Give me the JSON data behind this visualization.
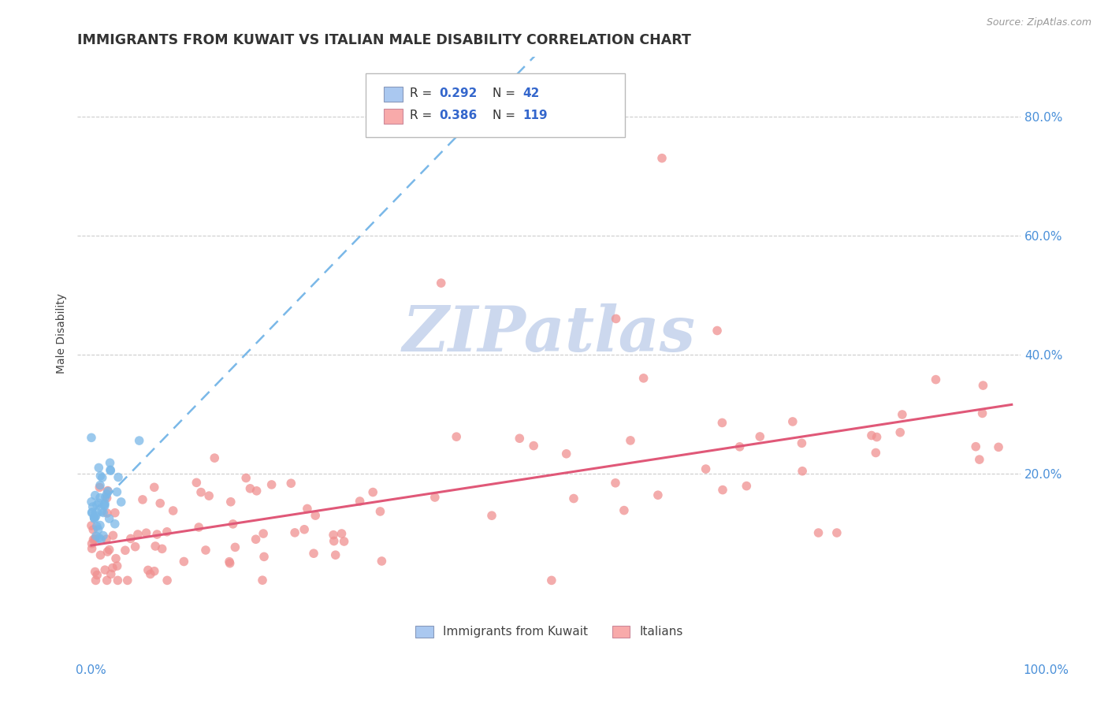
{
  "title": "IMMIGRANTS FROM KUWAIT VS ITALIAN MALE DISABILITY CORRELATION CHART",
  "source": "Source: ZipAtlas.com",
  "ylabel": "Male Disability",
  "watermark": "ZIPatlas",
  "blue_line_color": "#7ab8e8",
  "pink_line_color": "#e05878",
  "blue_dot_color": "#7ab8e8",
  "pink_dot_color": "#f09090",
  "grid_color": "#cccccc",
  "background_color": "#ffffff",
  "title_color": "#333333",
  "axis_label_color": "#444444",
  "tick_label_color": "#4a90d9",
  "watermark_color": "#ccd8ee",
  "title_fontsize": 12.5,
  "axis_label_fontsize": 10,
  "tick_fontsize": 11,
  "legend_text_color": "#333333",
  "legend_value_color": "#3366cc"
}
